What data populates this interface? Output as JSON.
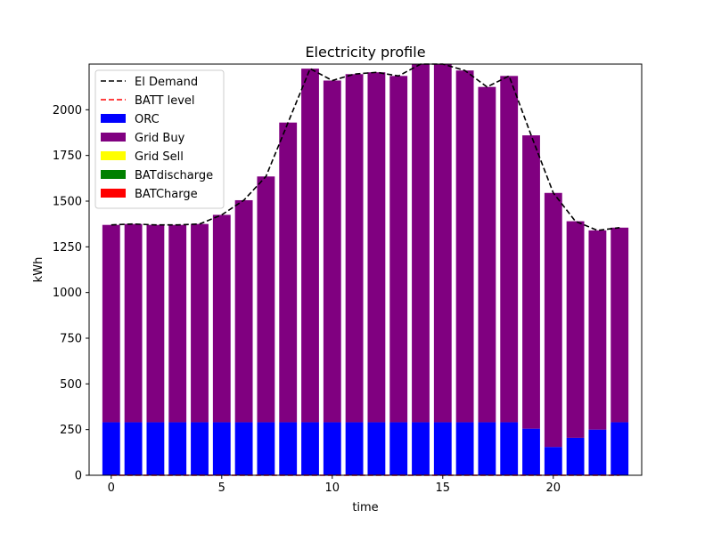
{
  "chart_data": {
    "type": "bar",
    "title": "Electricity profile",
    "xlabel": "time",
    "ylabel": "kWh",
    "xlim": [
      -1,
      24
    ],
    "ylim": [
      0,
      2250
    ],
    "xticks": [
      0,
      5,
      10,
      15,
      20
    ],
    "yticks": [
      0,
      250,
      500,
      750,
      1000,
      1250,
      1500,
      1750,
      2000
    ],
    "x": [
      0,
      1,
      2,
      3,
      4,
      5,
      6,
      7,
      8,
      9,
      10,
      11,
      12,
      13,
      14,
      15,
      16,
      17,
      18,
      19,
      20,
      21,
      22,
      23
    ],
    "legend": {
      "placement": "upper-left",
      "entries": [
        {
          "label": "El Demand",
          "kind": "line",
          "style": "dashed",
          "color": "#000000"
        },
        {
          "label": "BATT level",
          "kind": "line",
          "style": "dashed",
          "color": "#ff0000"
        },
        {
          "label": "ORC",
          "kind": "patch",
          "color": "#0000ff"
        },
        {
          "label": "Grid Buy",
          "kind": "patch",
          "color": "#800080"
        },
        {
          "label": "Grid Sell",
          "kind": "patch",
          "color": "#ffff00"
        },
        {
          "label": "BATdischarge",
          "kind": "patch",
          "color": "#008000"
        },
        {
          "label": "BATCharge",
          "kind": "patch",
          "color": "#ff0000"
        }
      ]
    },
    "series": [
      {
        "name": "ORC",
        "kind": "bar",
        "color": "#0000ff",
        "values": [
          290,
          290,
          290,
          290,
          290,
          290,
          290,
          290,
          290,
          290,
          290,
          290,
          290,
          290,
          290,
          290,
          290,
          290,
          290,
          255,
          155,
          205,
          250,
          290
        ]
      },
      {
        "name": "Grid Buy",
        "kind": "bar",
        "color": "#800080",
        "values": [
          1080,
          1085,
          1080,
          1080,
          1085,
          1135,
          1215,
          1345,
          1640,
          1935,
          1870,
          1905,
          1915,
          1895,
          1960,
          1960,
          1925,
          1835,
          1895,
          1605,
          1390,
          1185,
          1090,
          1065
        ]
      },
      {
        "name": "Grid Sell",
        "kind": "bar",
        "color": "#ffff00",
        "values": [
          0,
          0,
          0,
          0,
          0,
          0,
          0,
          0,
          0,
          0,
          0,
          0,
          0,
          0,
          0,
          0,
          0,
          0,
          0,
          0,
          0,
          0,
          0,
          0
        ]
      },
      {
        "name": "BATdischarge",
        "kind": "bar",
        "color": "#008000",
        "values": [
          0,
          0,
          0,
          0,
          0,
          0,
          0,
          0,
          0,
          0,
          0,
          0,
          0,
          0,
          0,
          0,
          0,
          0,
          0,
          0,
          0,
          0,
          0,
          0
        ]
      },
      {
        "name": "BATCharge",
        "kind": "bar",
        "color": "#ff0000",
        "values": [
          0,
          0,
          0,
          0,
          0,
          0,
          0,
          0,
          0,
          0,
          0,
          0,
          0,
          0,
          0,
          0,
          0,
          0,
          0,
          0,
          0,
          0,
          0,
          0
        ]
      },
      {
        "name": "El Demand",
        "kind": "line",
        "style": "dashed",
        "color": "#000000",
        "values": [
          1370,
          1375,
          1370,
          1370,
          1375,
          1425,
          1505,
          1635,
          1930,
          2225,
          2160,
          2195,
          2205,
          2185,
          2250,
          2250,
          2215,
          2125,
          2185,
          1860,
          1545,
          1390,
          1340,
          1355
        ]
      },
      {
        "name": "BATT level",
        "kind": "line",
        "style": "dashed",
        "color": "#ff0000",
        "values": [
          0,
          0,
          0,
          0,
          0,
          0,
          0,
          0,
          0,
          0,
          0,
          0,
          0,
          0,
          0,
          0,
          0,
          0,
          0,
          0,
          0,
          0,
          0,
          0
        ]
      }
    ]
  }
}
